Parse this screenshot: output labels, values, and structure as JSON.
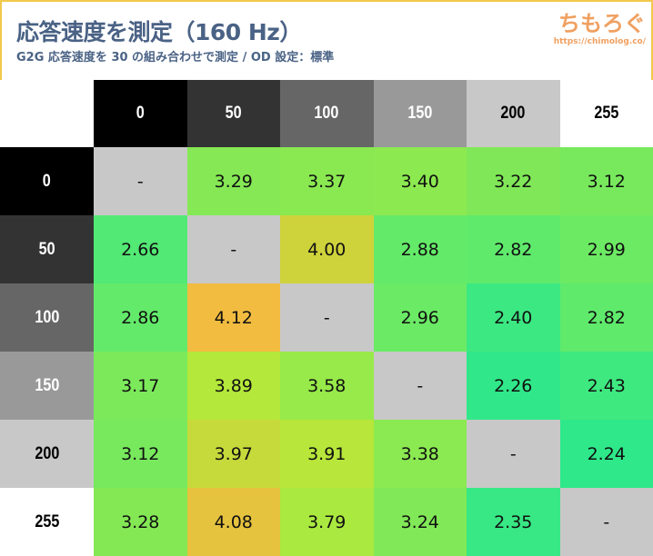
{
  "header": {
    "title": "応答速度を測定（160 Hz）",
    "subtitle": "G2G 応答速度を 30 の組み合わせで測定 / OD 設定：標準",
    "logo": "ちもろぐ",
    "logo_url": "https://chimolog.co/"
  },
  "chart_data": {
    "type": "heatmap",
    "categories": [
      "0",
      "50",
      "100",
      "150",
      "200",
      "255"
    ],
    "header_colors": [
      "#000000",
      "#333333",
      "#666666",
      "#999999",
      "#c8c8c8",
      "#ffffff"
    ],
    "header_text_colors": [
      "#ffffff",
      "#ffffff",
      "#ffffff",
      "#ffffff",
      "#000000",
      "#000000"
    ],
    "rows": [
      [
        "-",
        "3.29",
        "3.37",
        "3.40",
        "3.22",
        "3.12"
      ],
      [
        "2.66",
        "-",
        "4.00",
        "2.88",
        "2.82",
        "2.99"
      ],
      [
        "2.86",
        "4.12",
        "-",
        "2.96",
        "2.40",
        "2.82"
      ],
      [
        "3.17",
        "3.89",
        "3.58",
        "-",
        "2.26",
        "2.43"
      ],
      [
        "3.12",
        "3.97",
        "3.91",
        "3.38",
        "-",
        "2.24"
      ],
      [
        "3.28",
        "4.08",
        "3.79",
        "3.24",
        "2.35",
        "-"
      ]
    ],
    "diagonal_color": "#c8c8c8",
    "color_scale": [
      [
        2.24,
        "#2ee88a"
      ],
      [
        2.9,
        "#66ea68"
      ],
      [
        3.3,
        "#86e854"
      ],
      [
        3.6,
        "#98ea48"
      ],
      [
        3.9,
        "#b5e83a"
      ],
      [
        4.05,
        "#dcc93c"
      ],
      [
        4.12,
        "#f2bc40"
      ]
    ]
  }
}
